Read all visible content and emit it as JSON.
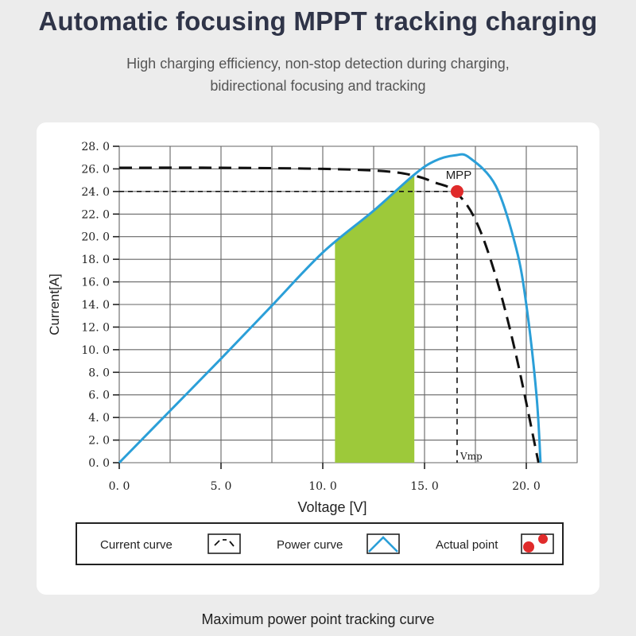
{
  "header": {
    "title": "Automatic focusing MPPT tracking charging",
    "subtitle": "High charging efficiency, non-stop detection during charging, bidirectional focusing and tracking"
  },
  "footer": {
    "caption": "Maximum power point tracking curve"
  },
  "chart_data": {
    "type": "line",
    "xlabel": "Voltage [V]",
    "ylabel": "Current[A]",
    "xlim": [
      0,
      22.5
    ],
    "ylim": [
      0,
      28
    ],
    "x_ticks": [
      0,
      5,
      10,
      15,
      20
    ],
    "x_tick_labels": [
      "0. 0",
      "5. 0",
      "10. 0",
      "15. 0",
      "20. 0"
    ],
    "y_ticks": [
      0,
      2,
      4,
      6,
      8,
      10,
      12,
      14,
      16,
      18,
      20,
      22,
      24,
      26,
      28
    ],
    "y_tick_labels": [
      "0. 0",
      "2. 0",
      "4. 0",
      "6. 0",
      "8. 0",
      "10. 0",
      "12. 0",
      "14. 0",
      "16. 0",
      "18. 0",
      "20. 0",
      "22. 0",
      "24. 0",
      "26. 0",
      "28. 0"
    ],
    "grid": true,
    "series": [
      {
        "name": "Current curve",
        "style": "dashed",
        "color": "#111111",
        "x": [
          0,
          5,
          10,
          13,
          14.5,
          15.5,
          16.5,
          17.5,
          18.5,
          19.5,
          20.6
        ],
        "y": [
          26.1,
          26.1,
          26.0,
          25.8,
          25.4,
          24.8,
          24.0,
          21.5,
          16.5,
          9.5,
          0
        ]
      },
      {
        "name": "Power curve",
        "style": "solid",
        "color": "#2b9fd8",
        "x": [
          0,
          2.5,
          5,
          7.5,
          10,
          12.5,
          14.5,
          15.5,
          16.5,
          17.2,
          18.5,
          19.5,
          20.0,
          20.5,
          20.7
        ],
        "y": [
          0,
          4.6,
          9.2,
          13.9,
          18.6,
          22.3,
          25.5,
          26.7,
          27.2,
          27.0,
          24.5,
          19.0,
          14.0,
          6.0,
          0
        ]
      }
    ],
    "shaded_region": {
      "x_from": 10.6,
      "x_to": 14.5,
      "color": "#9dc93a"
    },
    "max_power_point": {
      "label": "MPP",
      "x": 16.6,
      "y": 24.0,
      "color": "#e02b2b",
      "vline_label": "Vmp"
    },
    "legend": {
      "placement": "bottom",
      "items": [
        {
          "label": "Current curve",
          "icon": "dashed-curve-icon"
        },
        {
          "label": "Power curve",
          "icon": "blue-peak-icon"
        },
        {
          "label": "Actual point",
          "icon": "red-dot-icon"
        }
      ]
    }
  }
}
